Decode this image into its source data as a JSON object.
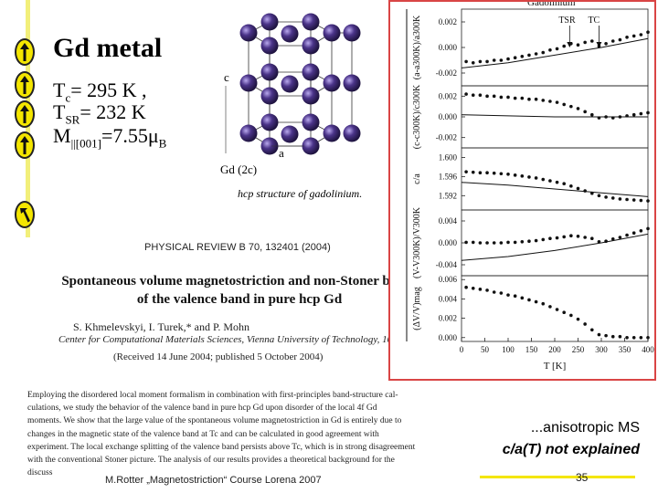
{
  "slide": {
    "title": "Gd metal",
    "tc_line": "Tᴄ= 295 K ,",
    "tsr_line": "TSR= 232 K",
    "moment_line": "M||[001]=7.55μB",
    "note_line1": "...anisotropic MS",
    "note_line2": "c/a(T) not explained",
    "footer": "M.Rotter „Magnetostriction“ Course Lorena 2007",
    "page_number": "35"
  },
  "crystal": {
    "label_c": "c",
    "label_a": "a",
    "label_gd": "Gd (2c)",
    "caption": "hcp structure of gadolinium."
  },
  "paper": {
    "journal": "PHYSICAL REVIEW B 70, 132401 (2004)",
    "title_line1": "Spontaneous volume magnetostriction and non-Stoner behav",
    "title_line2": "of the valence band in pure hcp Gd",
    "authors": "S. Khmelevskyi, I. Turek,* and P. Mohn",
    "affiliation": "Center for Computational Materials Sciences, Vienna University of Technology, 1060 Vien",
    "received": "(Received 14 June 2004; published 5 October 2004)",
    "abstract_lines": [
      "Employing the disordered local moment formalism in combination with first-principles band-structure cal-",
      "culations, we study the behavior of the valence band in pure hcp Gd upon disorder of the local 4f Gd",
      "moments. We show that the large value of the spontaneous volume magnetostriction in Gd is entirely due to",
      "changes in the magnetic state of the valence band at Tc and can be calculated in good agreement with",
      "experiment. The local exchange splitting of the valence band persists above Tc, which is in strong disagreement",
      "with the conventional Stoner picture. The analysis of our results provides a theoretical background for the",
      "discuss"
    ]
  },
  "chart_data": {
    "type": "scatter",
    "title": "Gadolinium",
    "xlabel": "T [K]",
    "x_ticks": [
      "0",
      "50",
      "100",
      "150",
      "200",
      "250",
      "300",
      "350",
      "400"
    ],
    "xlim": [
      0,
      400
    ],
    "annotations": [
      "TSR",
      "TC"
    ],
    "panels": [
      {
        "ylabel": "(a-a300K)/a300K",
        "y_ticks": [
          "0.002",
          "0.000",
          "-0.002"
        ],
        "ylim": [
          -0.003,
          0.003
        ],
        "points": [
          [
            10,
            -0.0011
          ],
          [
            25,
            -0.0012
          ],
          [
            40,
            -0.0011
          ],
          [
            55,
            -0.0011
          ],
          [
            70,
            -0.001
          ],
          [
            85,
            -0.001
          ],
          [
            100,
            -0.0009
          ],
          [
            115,
            -0.0008
          ],
          [
            130,
            -0.0007
          ],
          [
            145,
            -0.0006
          ],
          [
            160,
            -0.0005
          ],
          [
            175,
            -0.0004
          ],
          [
            190,
            -0.0002
          ],
          [
            205,
            -0.0001
          ],
          [
            220,
            0.0001
          ],
          [
            235,
            0.0003
          ],
          [
            250,
            0.0002
          ],
          [
            265,
            0.0004
          ],
          [
            280,
            0.0005
          ],
          [
            295,
            0.0001
          ],
          [
            310,
            0.0003
          ],
          [
            325,
            0.0005
          ],
          [
            340,
            0.0006
          ],
          [
            355,
            0.0008
          ],
          [
            370,
            0.0009
          ],
          [
            385,
            0.001
          ],
          [
            400,
            0.0012
          ]
        ],
        "line": [
          [
            0,
            -0.0016
          ],
          [
            100,
            -0.0012
          ],
          [
            200,
            -0.0006
          ],
          [
            300,
            0.0
          ],
          [
            400,
            0.0007
          ]
        ]
      },
      {
        "ylabel": "(c-c300K)/c300K",
        "y_ticks": [
          "0.002",
          "0.000",
          "-0.002"
        ],
        "ylim": [
          -0.003,
          0.003
        ],
        "points": [
          [
            10,
            0.0022
          ],
          [
            25,
            0.0021
          ],
          [
            40,
            0.0021
          ],
          [
            55,
            0.002
          ],
          [
            70,
            0.002
          ],
          [
            85,
            0.0019
          ],
          [
            100,
            0.0019
          ],
          [
            115,
            0.0018
          ],
          [
            130,
            0.0018
          ],
          [
            145,
            0.0017
          ],
          [
            160,
            0.0017
          ],
          [
            175,
            0.0016
          ],
          [
            190,
            0.0015
          ],
          [
            205,
            0.0014
          ],
          [
            220,
            0.0012
          ],
          [
            235,
            0.001
          ],
          [
            250,
            0.0008
          ],
          [
            265,
            0.0005
          ],
          [
            280,
            0.0002
          ],
          [
            295,
            -0.0001
          ],
          [
            310,
            0.0
          ],
          [
            325,
            -0.0001
          ],
          [
            340,
            0.0
          ],
          [
            355,
            0.0001
          ],
          [
            370,
            0.0002
          ],
          [
            385,
            0.0003
          ],
          [
            400,
            0.0004
          ]
        ],
        "line": [
          [
            0,
            0.0002
          ],
          [
            100,
            0.0001
          ],
          [
            200,
            0.0
          ],
          [
            300,
            0.0
          ],
          [
            400,
            0.0
          ]
        ]
      },
      {
        "ylabel": "c/a",
        "y_ticks": [
          "1.600",
          "1.596",
          "1.592"
        ],
        "ylim": [
          1.589,
          1.602
        ],
        "points": [
          [
            10,
            1.597
          ],
          [
            25,
            1.5969
          ],
          [
            40,
            1.5968
          ],
          [
            55,
            1.5968
          ],
          [
            70,
            1.5967
          ],
          [
            85,
            1.5966
          ],
          [
            100,
            1.5965
          ],
          [
            115,
            1.5963
          ],
          [
            130,
            1.5961
          ],
          [
            145,
            1.5959
          ],
          [
            160,
            1.5957
          ],
          [
            175,
            1.5954
          ],
          [
            190,
            1.5951
          ],
          [
            205,
            1.5948
          ],
          [
            220,
            1.5945
          ],
          [
            235,
            1.594
          ],
          [
            250,
            1.5935
          ],
          [
            265,
            1.593
          ],
          [
            280,
            1.5925
          ],
          [
            295,
            1.592
          ],
          [
            310,
            1.5917
          ],
          [
            325,
            1.5915
          ],
          [
            340,
            1.5913
          ],
          [
            355,
            1.5912
          ],
          [
            370,
            1.5911
          ],
          [
            385,
            1.591
          ],
          [
            400,
            1.5909
          ]
        ],
        "line": [
          [
            0,
            1.5948
          ],
          [
            100,
            1.5942
          ],
          [
            200,
            1.5934
          ],
          [
            300,
            1.5926
          ],
          [
            400,
            1.5918
          ]
        ]
      },
      {
        "ylabel": "(V-V300K)/V300K",
        "y_ticks": [
          "0.004",
          "0.000",
          "-0.004"
        ],
        "ylim": [
          -0.006,
          0.006
        ],
        "points": [
          [
            10,
            0.0001
          ],
          [
            25,
            0.0001
          ],
          [
            40,
            0.0
          ],
          [
            55,
            0.0
          ],
          [
            70,
            0.0
          ],
          [
            85,
            0.0
          ],
          [
            100,
            0.0001
          ],
          [
            115,
            0.0001
          ],
          [
            130,
            0.0002
          ],
          [
            145,
            0.0003
          ],
          [
            160,
            0.0004
          ],
          [
            175,
            0.0006
          ],
          [
            190,
            0.0008
          ],
          [
            205,
            0.0009
          ],
          [
            220,
            0.0011
          ],
          [
            235,
            0.0013
          ],
          [
            250,
            0.0012
          ],
          [
            265,
            0.001
          ],
          [
            280,
            0.0008
          ],
          [
            295,
            0.0002
          ],
          [
            310,
            0.0003
          ],
          [
            325,
            0.0007
          ],
          [
            340,
            0.001
          ],
          [
            355,
            0.0014
          ],
          [
            370,
            0.0018
          ],
          [
            385,
            0.0022
          ],
          [
            400,
            0.0026
          ]
        ],
        "line": [
          [
            0,
            -0.0032
          ],
          [
            100,
            -0.0025
          ],
          [
            200,
            -0.0014
          ],
          [
            300,
            0.0
          ],
          [
            400,
            0.0016
          ]
        ]
      },
      {
        "ylabel": "(ΔV/V)mag",
        "y_ticks": [
          "0.006",
          "0.004",
          "0.002",
          "0.000"
        ],
        "ylim": [
          -0.0004,
          0.0064
        ],
        "points": [
          [
            10,
            0.0052
          ],
          [
            25,
            0.0051
          ],
          [
            40,
            0.005
          ],
          [
            55,
            0.0049
          ],
          [
            70,
            0.0047
          ],
          [
            85,
            0.0046
          ],
          [
            100,
            0.0044
          ],
          [
            115,
            0.0043
          ],
          [
            130,
            0.0041
          ],
          [
            145,
            0.0039
          ],
          [
            160,
            0.0037
          ],
          [
            175,
            0.0035
          ],
          [
            190,
            0.0032
          ],
          [
            205,
            0.0029
          ],
          [
            220,
            0.0026
          ],
          [
            235,
            0.0023
          ],
          [
            250,
            0.0019
          ],
          [
            265,
            0.0014
          ],
          [
            280,
            0.0008
          ],
          [
            295,
            0.0003
          ],
          [
            310,
            0.0002
          ],
          [
            325,
            0.0001
          ],
          [
            340,
            0.0001
          ],
          [
            355,
            0.0
          ],
          [
            370,
            0.0
          ],
          [
            385,
            0.0
          ],
          [
            400,
            0.0
          ]
        ]
      }
    ]
  },
  "colors": {
    "arrow_fill": "#f4e600",
    "crystal_atom": "#3f2b78",
    "figure_border": "#d94545"
  },
  "icons": {
    "nav_buttons": [
      "arrow-up-icon",
      "arrow-up-icon",
      "arrow-up-icon",
      "arrow-up-icon",
      "arrow-up-left-icon"
    ]
  }
}
